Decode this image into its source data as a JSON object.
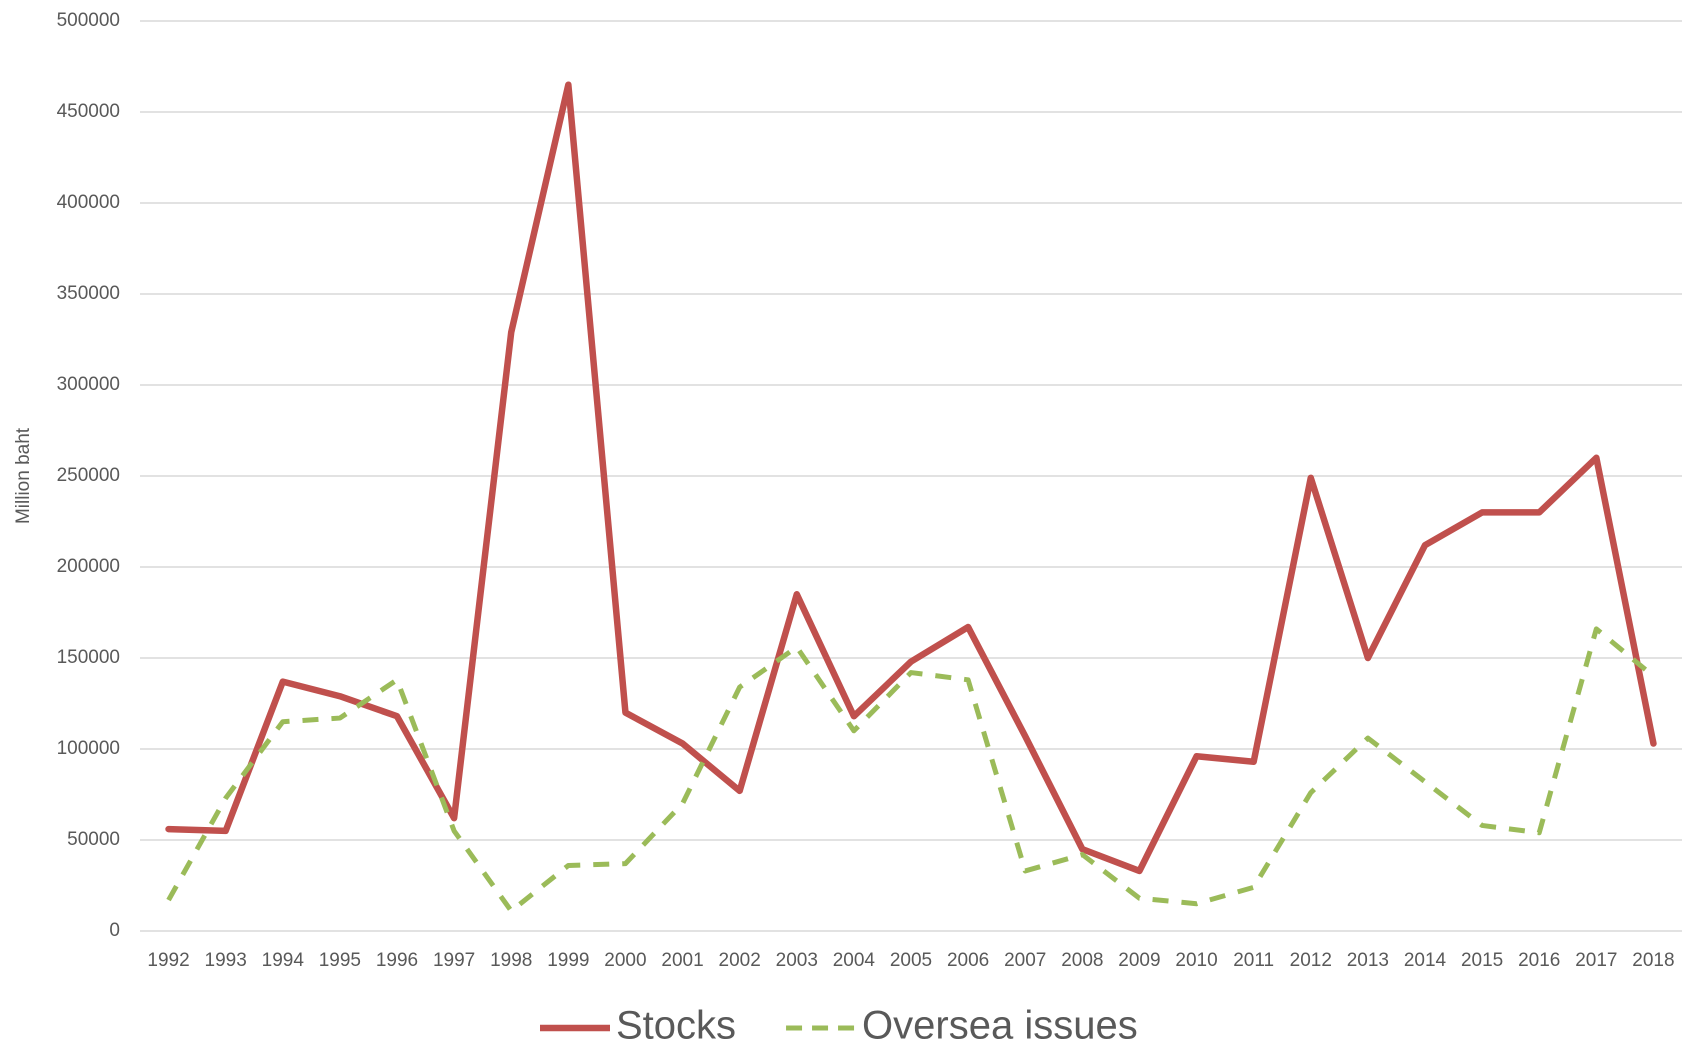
{
  "chart_data": {
    "type": "line",
    "y_label": "Million baht",
    "categories": [
      "1992",
      "1993",
      "1994",
      "1995",
      "1996",
      "1997",
      "1998",
      "1999",
      "2000",
      "2001",
      "2002",
      "2003",
      "2004",
      "2005",
      "2006",
      "2007",
      "2008",
      "2009",
      "2010",
      "2011",
      "2012",
      "2013",
      "2014",
      "2015",
      "2016",
      "2017",
      "2018"
    ],
    "series": [
      {
        "name": "Stocks",
        "color": "#c0504d",
        "line_style": "solid",
        "values": [
          56000,
          55000,
          137000,
          129000,
          118000,
          62000,
          329000,
          465000,
          120000,
          103000,
          77000,
          185000,
          118000,
          148000,
          167000,
          107000,
          45000,
          33000,
          96000,
          93000,
          249000,
          150000,
          212000,
          230000,
          230000,
          260000,
          103000
        ]
      },
      {
        "name": "Oversea issues",
        "color": "#9bbb59",
        "line_style": "dashed",
        "values": [
          17000,
          73000,
          115000,
          117000,
          138000,
          55000,
          11000,
          36000,
          37000,
          70000,
          134000,
          156000,
          110000,
          142000,
          138000,
          33000,
          42000,
          18000,
          15000,
          24000,
          76000,
          106000,
          82000,
          58000,
          54000,
          166000,
          140000
        ]
      }
    ],
    "ylim": [
      0,
      500000
    ],
    "yticks": [
      0,
      50000,
      100000,
      150000,
      200000,
      250000,
      300000,
      350000,
      400000,
      450000,
      500000
    ],
    "grid": true,
    "legend": "bottom"
  }
}
